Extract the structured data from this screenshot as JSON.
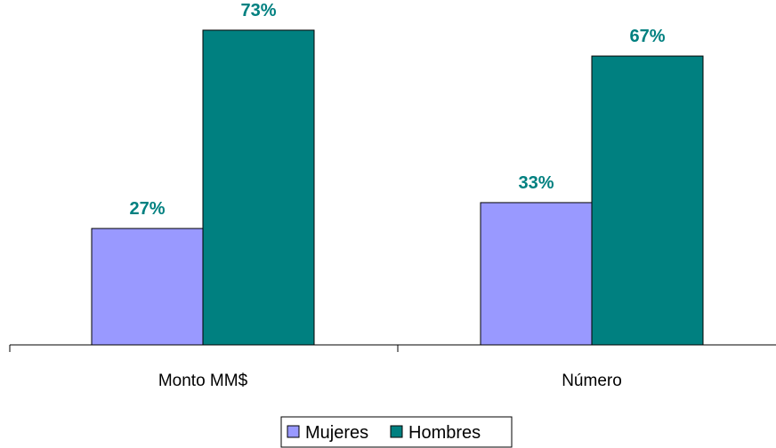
{
  "chart_data": {
    "type": "bar",
    "categories": [
      "Monto MM$",
      "Número"
    ],
    "series": [
      {
        "name": "Mujeres",
        "values": [
          27,
          33
        ],
        "labels": [
          "27%",
          "33%"
        ],
        "color": "#9999FF"
      },
      {
        "name": "Hombres",
        "values": [
          73,
          67
        ],
        "labels": [
          "73%",
          "67%"
        ],
        "color": "#008080"
      }
    ],
    "ylim": [
      0,
      80
    ],
    "grid": false,
    "legend_position": "bottom",
    "data_label_color": "#008080",
    "title": "",
    "xlabel": "",
    "ylabel": ""
  }
}
